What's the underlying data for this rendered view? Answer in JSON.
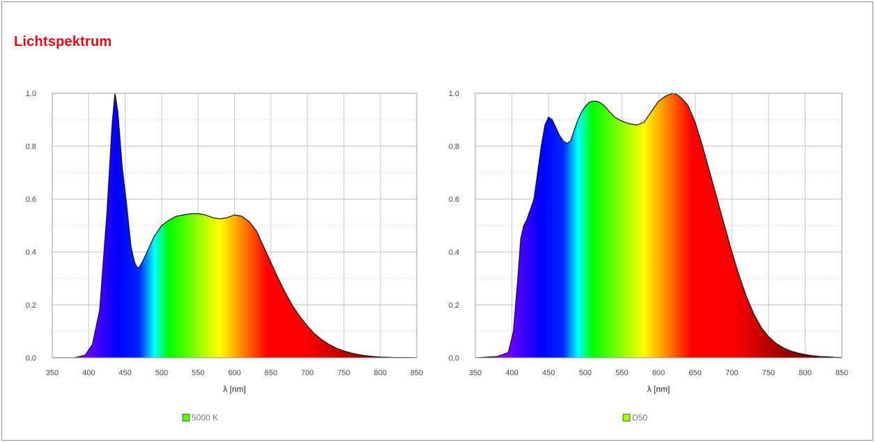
{
  "title": "Lichtspektrum",
  "chart_data": [
    {
      "type": "area",
      "xlabel": "λ [nm]",
      "ylabel": "",
      "xlim": [
        350,
        850
      ],
      "ylim": [
        0,
        1
      ],
      "x_ticks": [
        350,
        400,
        450,
        500,
        550,
        600,
        650,
        700,
        750,
        800,
        850
      ],
      "y_ticks": [
        "0.0",
        "0.2",
        "0.4",
        "0.6",
        "0.8",
        "1.0"
      ],
      "grid": true,
      "fill": "visible-spectrum-gradient",
      "legend": {
        "position": "bottom-center",
        "entries": [
          "5000 K"
        ]
      },
      "series": [
        {
          "name": "5000 K",
          "x": [
            350,
            380,
            395,
            405,
            415,
            425,
            432,
            436,
            440,
            446,
            452,
            458,
            463,
            467,
            470,
            475,
            480,
            490,
            500,
            510,
            520,
            530,
            540,
            550,
            560,
            570,
            580,
            590,
            600,
            610,
            620,
            630,
            640,
            650,
            660,
            670,
            680,
            690,
            700,
            710,
            720,
            730,
            740,
            750,
            760,
            770,
            780,
            790,
            800,
            810,
            820,
            830,
            840,
            850
          ],
          "y": [
            0,
            0,
            0.01,
            0.05,
            0.18,
            0.55,
            0.88,
            1.0,
            0.93,
            0.72,
            0.58,
            0.42,
            0.36,
            0.34,
            0.345,
            0.37,
            0.4,
            0.46,
            0.5,
            0.52,
            0.535,
            0.54,
            0.545,
            0.545,
            0.54,
            0.53,
            0.525,
            0.53,
            0.54,
            0.535,
            0.515,
            0.48,
            0.42,
            0.36,
            0.3,
            0.245,
            0.195,
            0.155,
            0.12,
            0.09,
            0.068,
            0.05,
            0.036,
            0.026,
            0.018,
            0.012,
            0.008,
            0.005,
            0.003,
            0.002,
            0.001,
            0.001,
            0.001,
            0
          ]
        }
      ]
    },
    {
      "type": "area",
      "xlabel": "λ [nm]",
      "ylabel": "",
      "xlim": [
        350,
        850
      ],
      "ylim": [
        0,
        1
      ],
      "x_ticks": [
        350,
        400,
        450,
        500,
        550,
        600,
        650,
        700,
        750,
        800,
        850
      ],
      "y_ticks": [
        "0.0",
        "0.2",
        "0.4",
        "0.6",
        "0.8",
        "1.0"
      ],
      "grid": true,
      "fill": "visible-spectrum-gradient",
      "legend": {
        "position": "bottom-center",
        "entries": [
          "D50"
        ]
      },
      "series": [
        {
          "name": "D50",
          "x": [
            350,
            380,
            395,
            402,
            408,
            412,
            416,
            420,
            425,
            430,
            435,
            440,
            445,
            450,
            455,
            460,
            465,
            470,
            475,
            480,
            485,
            490,
            495,
            500,
            505,
            510,
            515,
            520,
            525,
            530,
            540,
            550,
            560,
            570,
            580,
            590,
            600,
            610,
            615,
            620,
            625,
            630,
            640,
            650,
            660,
            670,
            680,
            690,
            700,
            710,
            720,
            730,
            740,
            750,
            760,
            770,
            780,
            790,
            800,
            810,
            820,
            830,
            840,
            850
          ],
          "y": [
            0,
            0.005,
            0.02,
            0.1,
            0.3,
            0.45,
            0.5,
            0.52,
            0.56,
            0.6,
            0.7,
            0.8,
            0.88,
            0.91,
            0.9,
            0.87,
            0.84,
            0.82,
            0.81,
            0.82,
            0.86,
            0.9,
            0.93,
            0.95,
            0.965,
            0.97,
            0.97,
            0.965,
            0.955,
            0.94,
            0.91,
            0.895,
            0.885,
            0.88,
            0.89,
            0.93,
            0.97,
            0.99,
            0.995,
            1.0,
            0.995,
            0.985,
            0.955,
            0.89,
            0.8,
            0.7,
            0.6,
            0.5,
            0.4,
            0.31,
            0.23,
            0.165,
            0.115,
            0.08,
            0.055,
            0.038,
            0.026,
            0.018,
            0.012,
            0.008,
            0.005,
            0.004,
            0.002,
            0.001
          ]
        }
      ]
    }
  ]
}
